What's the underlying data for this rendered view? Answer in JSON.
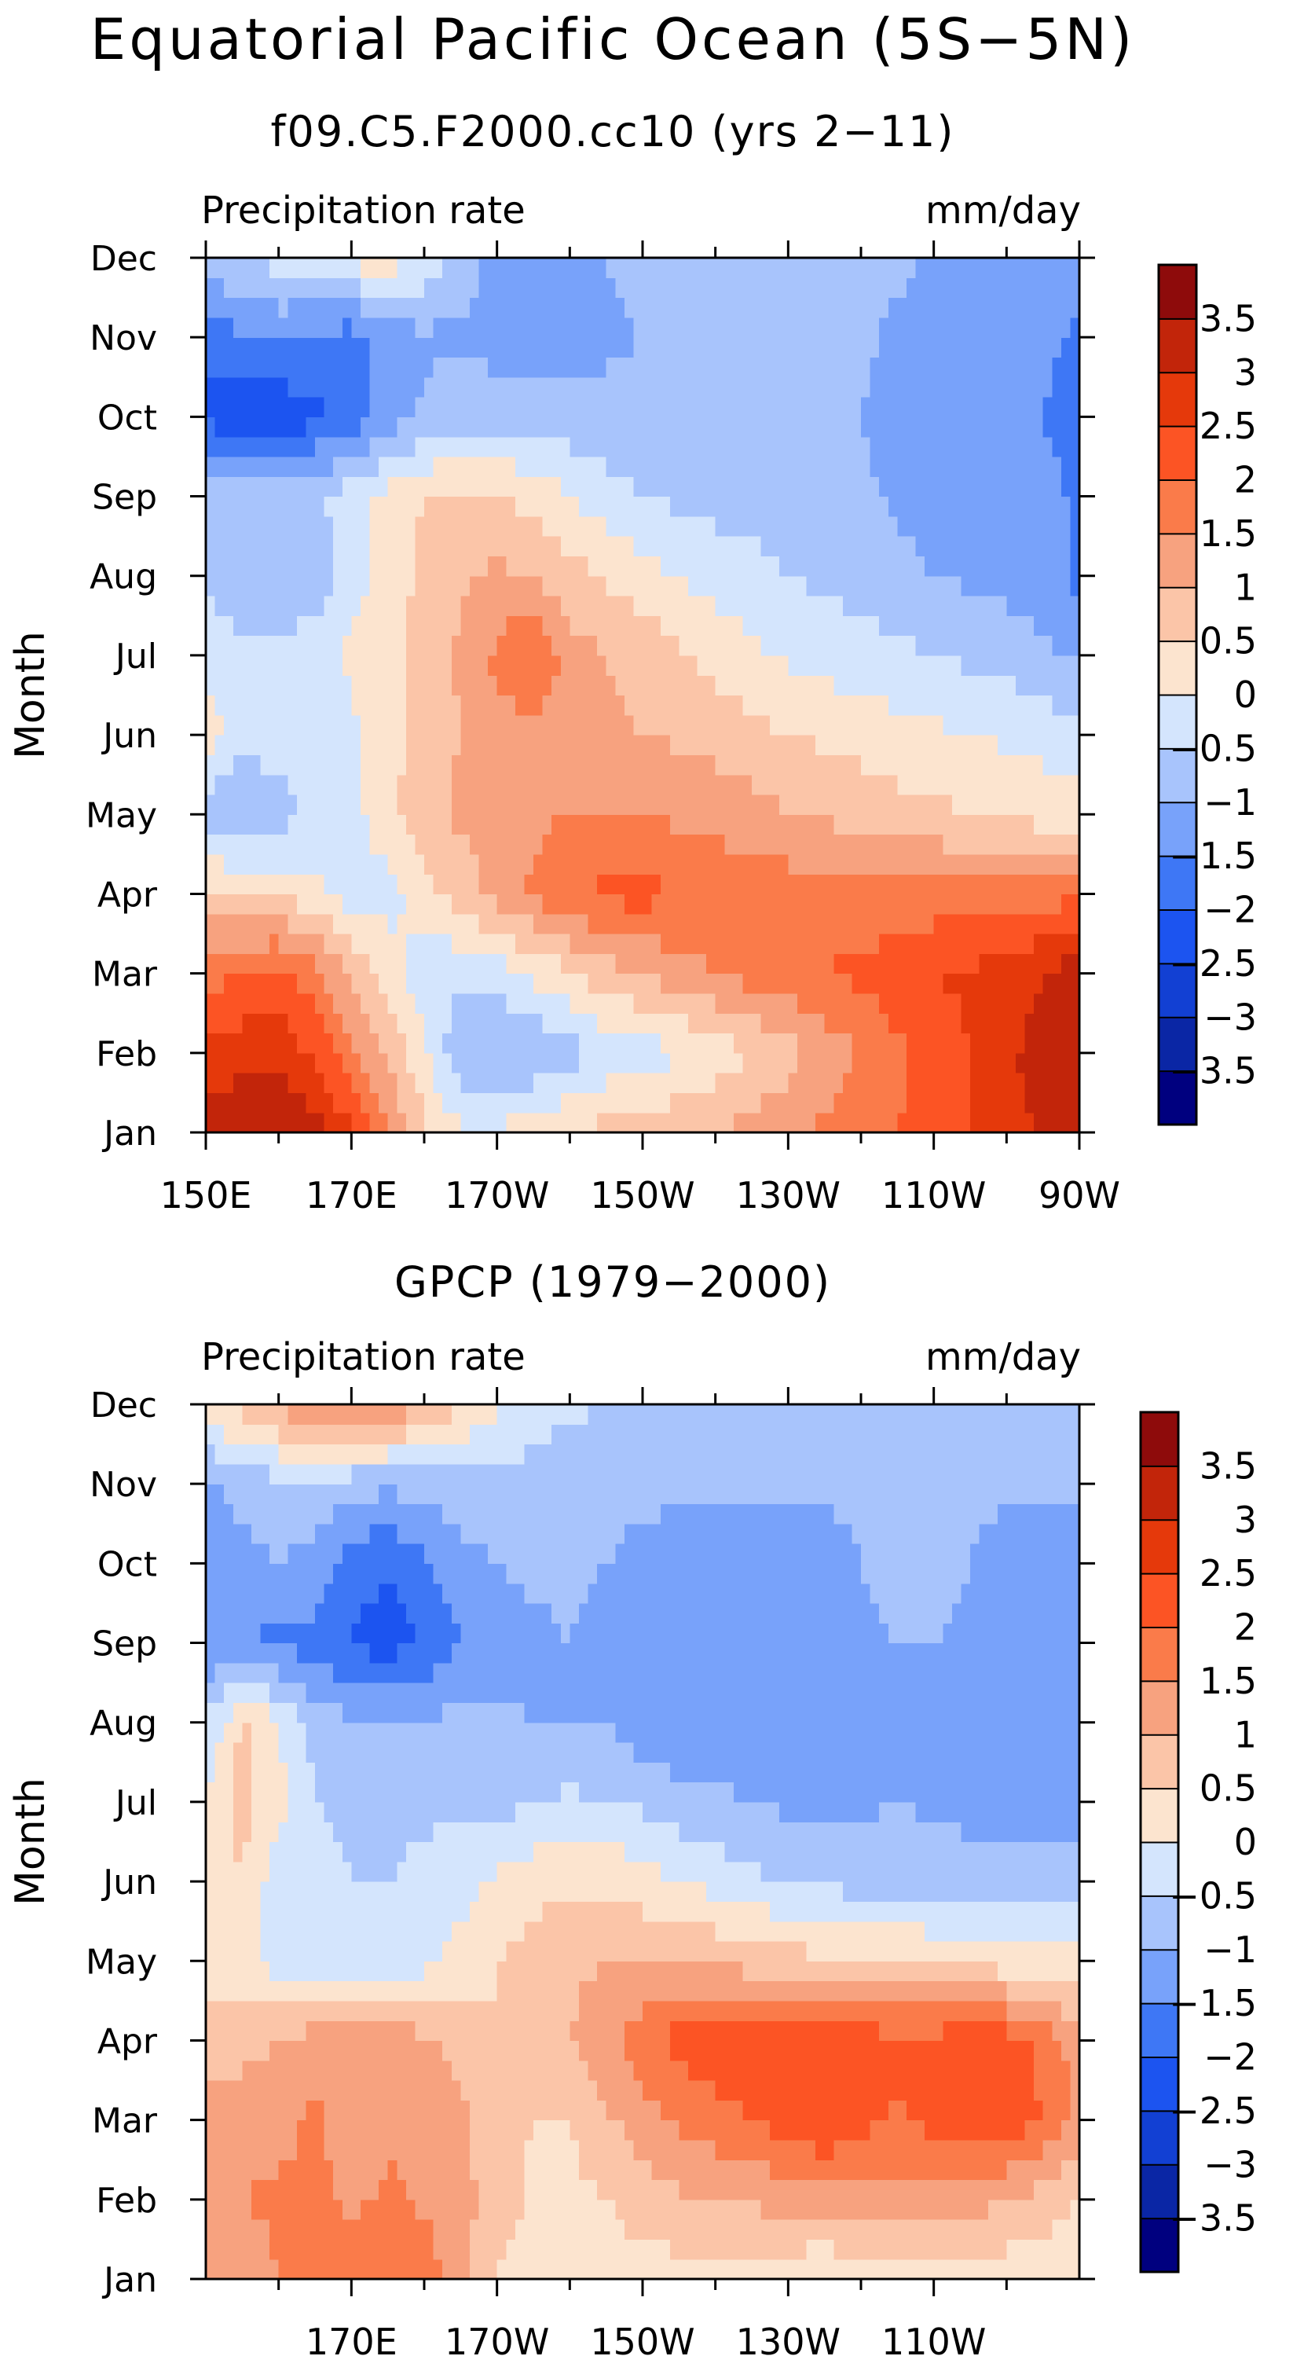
{
  "figure": {
    "title": "Equatorial Pacific Ocean (5S−5N)"
  },
  "chart_data": [
    {
      "type": "heatmap",
      "subtitle": "f09.C5.F2000.cc10 (yrs 2−11)",
      "top_left_label": "Precipitation rate",
      "top_right_label": "mm/day",
      "ylabel": "Month",
      "x_range": [
        150,
        270
      ],
      "x_tick_values": [
        150,
        170,
        190,
        210,
        230,
        250,
        270
      ],
      "x_tick_labels": [
        "150E",
        "170E",
        "170W",
        "150W",
        "130W",
        "110W",
        "90W"
      ],
      "x_minor_values": [
        160,
        180,
        200,
        220,
        240,
        260
      ],
      "y_tick_labels": [
        "Jan",
        "Feb",
        "Mar",
        "Apr",
        "May",
        "Jun",
        "Jul",
        "Aug",
        "Sep",
        "Oct",
        "Nov",
        "Dec"
      ],
      "colorbar_labels": [
        "3.5",
        "3",
        "2.5",
        "2",
        "1.5",
        "1",
        "0.5",
        "0",
        "−0.5",
        "−1",
        "−1.5",
        "−2",
        "−2.5",
        "−3",
        "−3.5"
      ],
      "lons": [
        150,
        155,
        160,
        165,
        170,
        175,
        180,
        185,
        190,
        195,
        200,
        205,
        210,
        215,
        220,
        225,
        230,
        235,
        240,
        245,
        250,
        255,
        260,
        265,
        270
      ],
      "values": [
        [
          3.3,
          3.4,
          3.5,
          3.2,
          2.6,
          1.5,
          0.6,
          0.1,
          0.1,
          0.3,
          0.5,
          0.7,
          0.8,
          0.9,
          1.0,
          1.2,
          1.4,
          1.6,
          1.8,
          2.0,
          2.2,
          2.5,
          2.8,
          3.1,
          3.5
        ],
        [
          2.6,
          2.8,
          2.9,
          2.4,
          1.6,
          0.9,
          0.1,
          -0.9,
          -1.1,
          -1.0,
          -0.7,
          -0.4,
          -0.2,
          -0.1,
          0.2,
          0.5,
          0.8,
          1.2,
          1.5,
          1.9,
          2.2,
          2.5,
          2.9,
          3.2,
          3.5
        ],
        [
          1.8,
          2.0,
          2.2,
          1.7,
          0.9,
          0.3,
          -0.3,
          -0.4,
          -0.3,
          0.1,
          0.4,
          0.8,
          1.0,
          1.3,
          1.5,
          1.7,
          1.8,
          2.0,
          2.1,
          2.3,
          2.5,
          2.6,
          2.7,
          3.0,
          3.3
        ],
        [
          0.6,
          0.5,
          0.4,
          0.2,
          -0.3,
          -0.2,
          0.3,
          0.7,
          1.2,
          1.6,
          1.9,
          2.1,
          2.2,
          2.0,
          1.9,
          1.8,
          1.8,
          1.8,
          1.7,
          1.7,
          1.7,
          1.7,
          1.7,
          1.8,
          1.9
        ],
        [
          -0.8,
          -1.0,
          -0.7,
          -0.4,
          -0.2,
          0.4,
          0.8,
          1.1,
          1.3,
          1.4,
          1.5,
          1.5,
          1.5,
          1.4,
          1.3,
          1.2,
          1.0,
          0.9,
          0.8,
          0.7,
          0.6,
          0.5,
          0.4,
          0.3,
          0.3
        ],
        [
          0.3,
          -0.3,
          -0.3,
          -0.2,
          -0.1,
          0.3,
          0.7,
          1.0,
          1.3,
          1.3,
          1.3,
          1.1,
          1.0,
          0.9,
          0.8,
          0.7,
          0.5,
          0.4,
          0.3,
          0.2,
          0.1,
          0.0,
          -0.1,
          -0.2,
          -0.3
        ],
        [
          -0.2,
          -0.3,
          -0.3,
          -0.2,
          0.1,
          0.4,
          0.6,
          1.1,
          1.6,
          2.1,
          1.2,
          1.0,
          0.8,
          0.6,
          0.3,
          0.1,
          -0.1,
          -0.2,
          -0.3,
          -0.4,
          -0.5,
          -0.6,
          -0.7,
          -0.9,
          -1.1
        ],
        [
          -0.6,
          -1.0,
          -1.0,
          -0.8,
          -0.3,
          0.3,
          0.6,
          0.9,
          1.1,
          1.0,
          0.7,
          0.4,
          0.2,
          0.0,
          -0.2,
          -0.3,
          -0.5,
          -0.6,
          -0.7,
          -0.8,
          -1.0,
          -1.1,
          -1.2,
          -1.3,
          -1.6
        ],
        [
          -0.6,
          -0.6,
          -0.7,
          -0.6,
          -0.2,
          0.2,
          0.5,
          0.6,
          0.6,
          0.3,
          0.0,
          -0.3,
          -0.5,
          -0.6,
          -0.7,
          -0.7,
          -0.8,
          -0.8,
          -0.9,
          -1.1,
          -1.2,
          -1.2,
          -1.3,
          -1.3,
          -1.6
        ],
        [
          -2.1,
          -2.4,
          -2.4,
          -2.1,
          -1.8,
          -1.3,
          -0.9,
          -0.7,
          -0.7,
          -0.7,
          -0.8,
          -0.8,
          -0.9,
          -0.9,
          -0.9,
          -0.9,
          -0.9,
          -0.9,
          -1.0,
          -1.2,
          -1.4,
          -1.4,
          -1.4,
          -1.5,
          -1.8
        ],
        [
          -1.8,
          -1.6,
          -1.4,
          -1.6,
          -1.8,
          -1.3,
          -1.1,
          -1.1,
          -1.2,
          -1.3,
          -1.3,
          -1.1,
          -1.0,
          -1.0,
          -0.9,
          -0.8,
          -0.8,
          -0.8,
          -0.9,
          -1.1,
          -1.3,
          -1.3,
          -1.3,
          -1.4,
          -1.6
        ],
        [
          -0.7,
          -0.5,
          -0.3,
          -0.1,
          0.2,
          0.3,
          -0.1,
          -0.7,
          -1.2,
          -1.3,
          -1.2,
          -1.0,
          -0.8,
          -0.7,
          -0.6,
          -0.6,
          -0.6,
          -0.7,
          -0.8,
          -0.9,
          -1.1,
          -1.2,
          -1.2,
          -1.2,
          -1.2
        ]
      ]
    },
    {
      "type": "heatmap",
      "subtitle": "GPCP (1979−2000)",
      "top_left_label": "Precipitation rate",
      "top_right_label": "mm/day",
      "ylabel": "Month",
      "x_range": [
        150,
        270
      ],
      "x_tick_values": [
        170,
        190,
        210,
        230,
        250
      ],
      "x_tick_labels": [
        "170E",
        "170W",
        "150W",
        "130W",
        "110W"
      ],
      "x_minor_values": [
        160,
        180,
        200,
        220,
        240,
        260
      ],
      "y_tick_labels": [
        "Jan",
        "Feb",
        "Mar",
        "Apr",
        "May",
        "Jun",
        "Jul",
        "Aug",
        "Sep",
        "Oct",
        "Nov",
        "Dec"
      ],
      "colorbar_labels": [
        "3.5",
        "3",
        "2.5",
        "2",
        "1.5",
        "1",
        "0.5",
        "0",
        "−0.5",
        "−1",
        "−1.5",
        "−2",
        "−2.5",
        "−3",
        "−3.5"
      ],
      "lons": [
        150,
        155,
        160,
        165,
        170,
        175,
        180,
        185,
        190,
        195,
        200,
        205,
        210,
        215,
        220,
        225,
        230,
        235,
        240,
        245,
        250,
        255,
        260,
        265,
        270
      ],
      "values": [
        [
          1.1,
          1.2,
          1.5,
          1.6,
          1.7,
          1.8,
          1.8,
          1.2,
          0.4,
          0.3,
          0.3,
          0.3,
          0.3,
          0.3,
          0.3,
          0.2,
          0.1,
          0.0,
          0.1,
          0.2,
          0.2,
          0.2,
          0.2,
          0.1,
          0.1
        ],
        [
          1.4,
          1.5,
          1.6,
          1.7,
          1.4,
          1.6,
          1.4,
          1.2,
          0.8,
          0.4,
          0.4,
          0.5,
          0.7,
          0.9,
          1.0,
          1.1,
          1.2,
          1.3,
          1.3,
          1.3,
          1.3,
          1.2,
          1.0,
          0.8,
          0.5
        ],
        [
          1.2,
          1.3,
          1.3,
          1.6,
          1.0,
          1.4,
          1.3,
          1.1,
          0.6,
          0.5,
          0.5,
          0.9,
          1.3,
          1.6,
          1.8,
          2.0,
          2.2,
          2.5,
          2.2,
          1.9,
          2.2,
          2.5,
          2.4,
          2.0,
          1.4
        ],
        [
          0.7,
          0.8,
          1.0,
          1.3,
          1.5,
          1.4,
          1.1,
          0.8,
          0.5,
          0.7,
          1.0,
          1.4,
          1.8,
          2.2,
          2.3,
          2.3,
          2.4,
          2.4,
          2.3,
          2.1,
          2.2,
          2.4,
          2.3,
          1.8,
          1.2
        ],
        [
          0.2,
          0.3,
          -0.3,
          -0.4,
          -0.5,
          -0.4,
          -0.2,
          0.2,
          0.5,
          0.7,
          0.9,
          1.0,
          1.0,
          1.0,
          0.9,
          0.8,
          0.7,
          0.6,
          0.5,
          0.5,
          0.4,
          0.3,
          0.2,
          0.2,
          0.1
        ],
        [
          0.2,
          0.5,
          -0.3,
          -0.4,
          -0.5,
          -0.5,
          -0.4,
          -0.2,
          0.1,
          0.3,
          0.4,
          0.4,
          0.2,
          0.0,
          -0.2,
          -0.4,
          -0.5,
          -0.6,
          -0.7,
          -0.7,
          -0.7,
          -0.7,
          -0.7,
          -0.7,
          -0.7
        ],
        [
          0.0,
          0.7,
          0.2,
          -0.5,
          -0.6,
          -0.6,
          -0.6,
          -0.6,
          -0.7,
          -0.5,
          -0.4,
          -0.5,
          -0.6,
          -0.8,
          -0.9,
          -1.0,
          -1.1,
          -1.1,
          -1.1,
          -1.0,
          -1.1,
          -1.2,
          -1.4,
          -1.5,
          -1.2
        ],
        [
          -0.5,
          0.6,
          0.0,
          -0.7,
          -0.9,
          -0.9,
          -0.9,
          -0.9,
          -0.9,
          -1.0,
          -1.0,
          -1.0,
          -1.3,
          -1.4,
          -1.4,
          -1.3,
          -1.3,
          -1.2,
          -1.1,
          -1.1,
          -1.1,
          -1.2,
          -1.4,
          -1.3,
          -1.1
        ],
        [
          -1.4,
          -1.5,
          -1.6,
          -1.7,
          -2.1,
          -2.2,
          -2.0,
          -1.5,
          -1.2,
          -1.1,
          -1.0,
          -1.2,
          -1.3,
          -1.4,
          -1.4,
          -1.4,
          -1.4,
          -1.3,
          -1.1,
          -1.0,
          -1.0,
          -1.1,
          -1.3,
          -1.3,
          -1.2
        ],
        [
          -1.3,
          -1.2,
          -1.0,
          -1.2,
          -1.7,
          -2.0,
          -1.6,
          -1.2,
          -1.0,
          -0.9,
          -0.9,
          -1.0,
          -1.2,
          -1.3,
          -1.3,
          -1.2,
          -1.2,
          -1.2,
          -1.0,
          -0.9,
          -0.9,
          -1.0,
          -1.2,
          -1.3,
          -1.2
        ],
        [
          -1.1,
          -0.8,
          -0.7,
          -0.7,
          -0.8,
          -0.9,
          -0.8,
          -0.7,
          -0.7,
          -0.7,
          -0.8,
          -0.8,
          -0.8,
          -0.9,
          -0.9,
          -0.9,
          -0.9,
          -0.9,
          -0.9,
          -0.9,
          -0.9,
          -0.9,
          -0.9,
          -0.9,
          -0.9
        ],
        [
          0.3,
          0.7,
          1.2,
          1.5,
          1.7,
          1.5,
          1.1,
          0.6,
          0.1,
          -0.3,
          -0.4,
          -0.5,
          -0.5,
          -0.5,
          -0.6,
          -0.6,
          -0.6,
          -0.7,
          -0.7,
          -0.8,
          -0.8,
          -0.8,
          -0.8,
          -0.8,
          -0.8
        ]
      ]
    }
  ],
  "palette": [
    "#00007F",
    "#0A26A5",
    "#1240D3",
    "#1C54F0",
    "#3E77F5",
    "#78A2FA",
    "#A8C4FC",
    "#D4E5FD",
    "#FCE4CF",
    "#FBC5A8",
    "#F7A27F",
    "#FA7B4A",
    "#FC5424",
    "#E5390B",
    "#C2250A",
    "#8E0B0B"
  ],
  "levels": [
    -3.5,
    -3,
    -2.5,
    -2,
    -1.5,
    -1,
    -0.5,
    0,
    0.5,
    1,
    1.5,
    2,
    2.5,
    3,
    3.5
  ]
}
